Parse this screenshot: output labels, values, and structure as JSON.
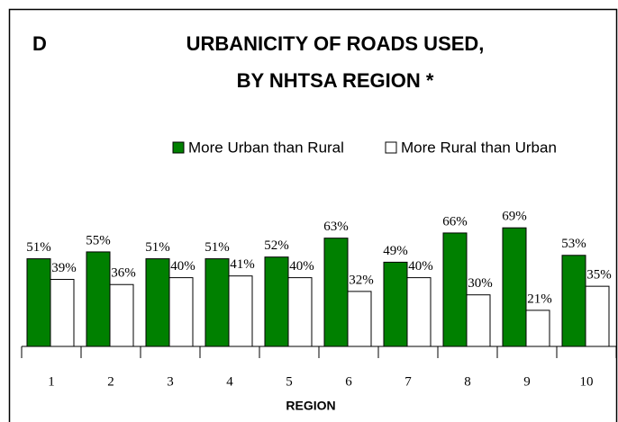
{
  "chart_data": {
    "type": "bar",
    "panel_label": "D",
    "title": [
      "URBANICITY OF ROADS USED,",
      "BY NHTSA REGION *"
    ],
    "xlabel": "REGION",
    "categories": [
      "1",
      "2",
      "3",
      "4",
      "5",
      "6",
      "7",
      "8",
      "9",
      "10"
    ],
    "series": [
      {
        "name": "More Urban than Rural",
        "color": "#008000",
        "values": [
          51,
          55,
          51,
          51,
          52,
          63,
          49,
          66,
          69,
          53
        ],
        "value_labels": [
          "51%",
          "55%",
          "51%",
          "51%",
          "52%",
          "63%",
          "49%",
          "66%",
          "69%",
          "53%"
        ]
      },
      {
        "name": "More Rural than Urban",
        "color": "#ffffff",
        "values": [
          39,
          36,
          40,
          41,
          40,
          32,
          40,
          30,
          21,
          35
        ],
        "value_labels": [
          "39%",
          "36%",
          "40%",
          "41%",
          "40%",
          "32%",
          "40%",
          "30%",
          "21%",
          "35%"
        ]
      }
    ],
    "ylim": [
      0,
      100
    ],
    "legend": "top"
  }
}
